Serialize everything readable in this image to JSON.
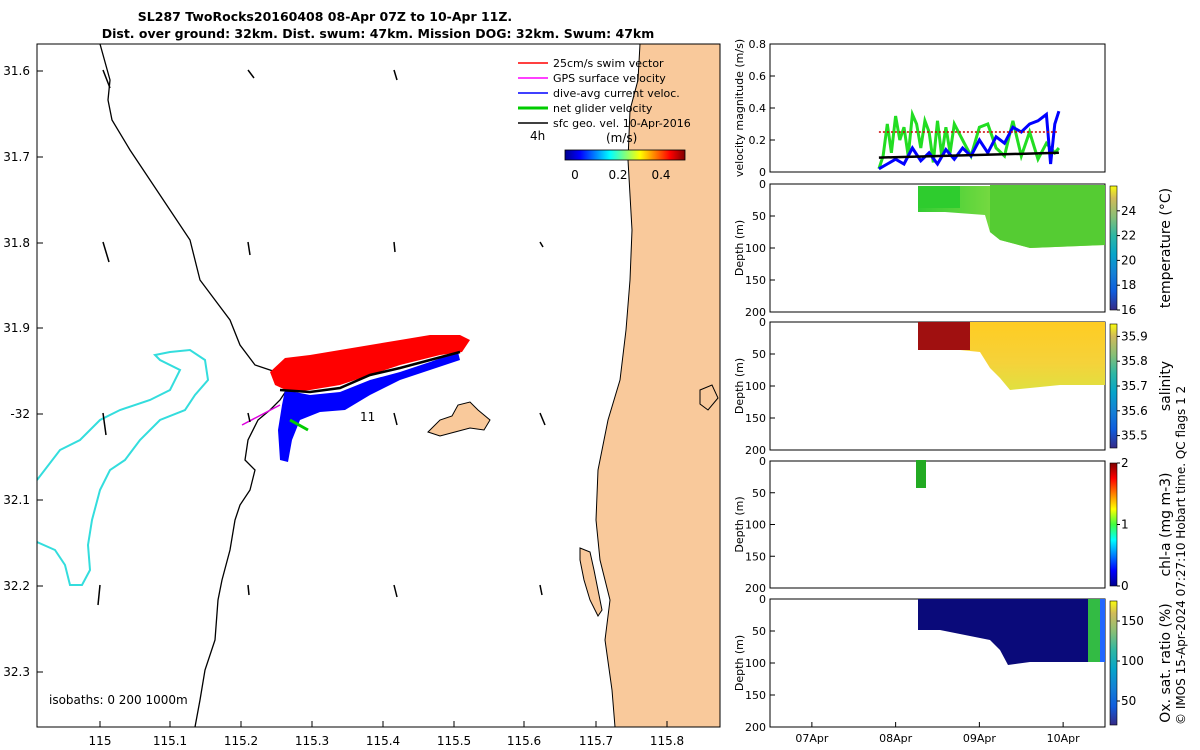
{
  "title": {
    "line1": "SL287 TwoRocks20160408 08-Apr 07Z to 10-Apr 11Z.",
    "line2": "Dist. over ground: 32km. Dist. swum: 47km. Mission DOG: 32km. Swum: 47km"
  },
  "map": {
    "lon_ticks": [
      "115",
      "115.1",
      "115.2",
      "115.3",
      "115.4",
      "115.5",
      "115.6",
      "115.7",
      "115.8"
    ],
    "lat_ticks": [
      "31.6",
      "31.7",
      "31.8",
      "31.9",
      "-32",
      "32.1",
      "32.2",
      "32.3"
    ],
    "legend": [
      {
        "label": "25cm/s swim vector",
        "color": "#ff0000"
      },
      {
        "label": "GPS surface velocity",
        "color": "#ff00ff"
      },
      {
        "label": "dive-avg current veloc.",
        "color": "#0000ff"
      },
      {
        "label": "net glider velocity",
        "color": "#00cc00"
      },
      {
        "label": "sfc geo. vel. 10-Apr-2016",
        "color": "#000000"
      }
    ],
    "scale_label": "4h",
    "colorbar_label": "(m/s)",
    "colorbar_ticks": [
      "0",
      "0.2",
      "0.4"
    ],
    "isobaths_label": "isobaths: 0   200  1000m",
    "annotation": "11",
    "colors": {
      "land": "#f9c99b",
      "isobath": "#33dddd",
      "coast": "#000000"
    }
  },
  "chart_data": [
    {
      "type": "line",
      "title": "velocity",
      "ylabel": "velocity magnitude (m/s)",
      "ylim": [
        0,
        0.8
      ],
      "y_ticks": [
        "0",
        "0.2",
        "0.4",
        "0.6",
        "0.8"
      ],
      "xlim_days": [
        7,
        11
      ],
      "series": [
        {
          "name": "net glider velocity",
          "color": "#22dd22",
          "x": [
            8.3,
            8.35,
            8.4,
            8.45,
            8.5,
            8.55,
            8.6,
            8.65,
            8.7,
            8.75,
            8.8,
            8.85,
            8.9,
            8.95,
            9.0,
            9.05,
            9.1,
            9.15,
            9.2,
            9.3,
            9.4,
            9.5,
            9.6,
            9.7,
            9.8,
            9.9,
            10.0,
            10.1,
            10.2,
            10.3,
            10.4,
            10.45
          ],
          "y": [
            0.02,
            0.1,
            0.3,
            0.12,
            0.35,
            0.2,
            0.28,
            0.1,
            0.36,
            0.3,
            0.15,
            0.32,
            0.25,
            0.06,
            0.32,
            0.1,
            0.28,
            0.12,
            0.3,
            0.2,
            0.1,
            0.28,
            0.3,
            0.15,
            0.1,
            0.32,
            0.1,
            0.25,
            0.08,
            0.18,
            0.12,
            0.15
          ]
        },
        {
          "name": "dive-avg current",
          "color": "#0000ff",
          "x": [
            8.3,
            8.4,
            8.5,
            8.6,
            8.7,
            8.8,
            8.9,
            9.0,
            9.1,
            9.2,
            9.3,
            9.4,
            9.5,
            9.6,
            9.7,
            9.8,
            9.9,
            10.0,
            10.1,
            10.2,
            10.3,
            10.35,
            10.4,
            10.45
          ],
          "y": [
            0.02,
            0.05,
            0.08,
            0.05,
            0.15,
            0.07,
            0.12,
            0.05,
            0.14,
            0.08,
            0.15,
            0.1,
            0.2,
            0.12,
            0.22,
            0.18,
            0.28,
            0.25,
            0.3,
            0.32,
            0.36,
            0.05,
            0.3,
            0.38
          ]
        },
        {
          "name": "sfc geo. vel.",
          "color": "#000000",
          "x": [
            8.3,
            10.45
          ],
          "y": [
            0.09,
            0.12
          ]
        },
        {
          "name": "swim",
          "color": "#cc0000",
          "x": [
            8.3,
            10.45
          ],
          "y": [
            0.25,
            0.25
          ]
        }
      ]
    },
    {
      "type": "heatmap",
      "ylabel": "Depth (m)",
      "cblabel": "temperature (°C)",
      "ylim": [
        200,
        0
      ],
      "y_ticks": [
        "0",
        "50",
        "100",
        "150",
        "200"
      ],
      "cb_ticks": [
        "16",
        "18",
        "20",
        "22",
        "24"
      ],
      "cb_range": [
        16,
        26
      ]
    },
    {
      "type": "heatmap",
      "ylabel": "Depth (m)",
      "cblabel": "salinity",
      "ylim": [
        200,
        0
      ],
      "y_ticks": [
        "0",
        "50",
        "100",
        "150",
        "200"
      ],
      "cb_ticks": [
        "35.5",
        "35.6",
        "35.7",
        "35.8",
        "35.9"
      ],
      "cb_range": [
        35.45,
        35.95
      ]
    },
    {
      "type": "heatmap",
      "ylabel": "Depth (m)",
      "cblabel": "chl-a (mg m-3)",
      "ylim": [
        200,
        0
      ],
      "y_ticks": [
        "0",
        "50",
        "100",
        "150",
        "200"
      ],
      "cb_ticks": [
        "0",
        "1",
        "2"
      ],
      "cb_range": [
        0,
        2
      ]
    },
    {
      "type": "heatmap",
      "ylabel": "Depth (m)",
      "cblabel": "Ox. sat. ratio (%)",
      "ylim": [
        200,
        0
      ],
      "y_ticks": [
        "0",
        "50",
        "100",
        "150",
        "200"
      ],
      "cb_ticks": [
        "50",
        "100",
        "150"
      ],
      "cb_range": [
        20,
        175
      ]
    }
  ],
  "time_axis": {
    "ticks": [
      "07Apr",
      "08Apr",
      "09Apr",
      "10Apr"
    ]
  },
  "credit": "© IMOS 15-Apr-2024 07:27:10 Hobart time. QC flags 1  2"
}
